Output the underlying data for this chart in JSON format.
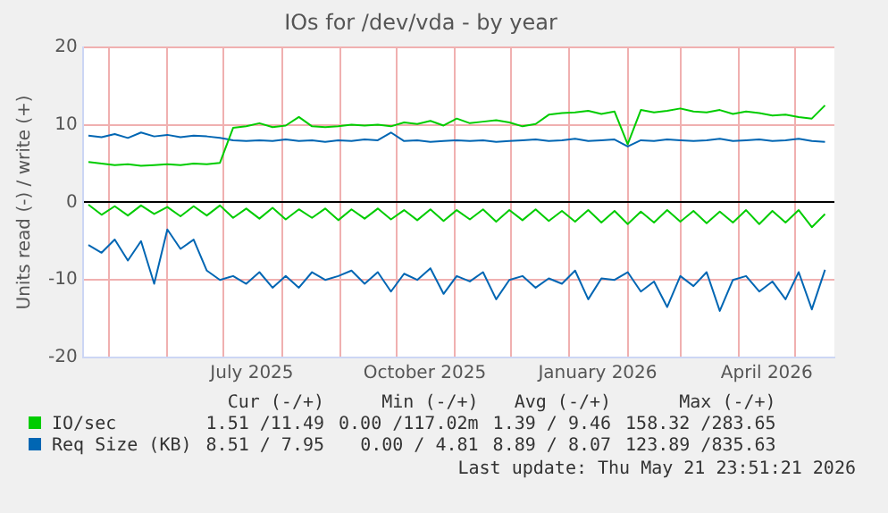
{
  "chart_data": {
    "type": "line",
    "title": "IOs for /dev/vda - by year",
    "ylabel": "Units read (-) / write (+)",
    "x": [
      "2025-04-20",
      "2025-04-27",
      "2025-05-04",
      "2025-05-11",
      "2025-05-18",
      "2025-05-25",
      "2025-06-01",
      "2025-06-08",
      "2025-06-15",
      "2025-06-22",
      "2025-06-29",
      "2025-07-06",
      "2025-07-13",
      "2025-07-20",
      "2025-07-27",
      "2025-08-03",
      "2025-08-10",
      "2025-08-17",
      "2025-08-24",
      "2025-08-31",
      "2025-09-07",
      "2025-09-14",
      "2025-09-21",
      "2025-09-28",
      "2025-10-05",
      "2025-10-12",
      "2025-10-19",
      "2025-10-26",
      "2025-11-02",
      "2025-11-09",
      "2025-11-16",
      "2025-11-23",
      "2025-11-30",
      "2025-12-07",
      "2025-12-14",
      "2025-12-21",
      "2025-12-28",
      "2026-01-04",
      "2026-01-11",
      "2026-01-18",
      "2026-01-25",
      "2026-02-01",
      "2026-02-08",
      "2026-02-15",
      "2026-02-22",
      "2026-03-01",
      "2026-03-08",
      "2026-03-15",
      "2026-03-22",
      "2026-03-29",
      "2026-04-05",
      "2026-04-12",
      "2026-04-19",
      "2026-04-26",
      "2026-05-03",
      "2026-05-10",
      "2026-05-17"
    ],
    "series": [
      {
        "name": "IO/sec",
        "color": "#00cc00",
        "values": [
          5.2,
          5.0,
          4.8,
          4.9,
          4.7,
          4.8,
          4.9,
          4.8,
          5.0,
          4.9,
          5.1,
          9.6,
          9.8,
          10.2,
          9.7,
          9.9,
          11.0,
          9.8,
          9.7,
          9.8,
          10.0,
          9.9,
          10.0,
          9.8,
          10.3,
          10.1,
          10.5,
          9.9,
          10.8,
          10.2,
          10.4,
          10.6,
          10.3,
          9.8,
          10.1,
          11.3,
          11.5,
          11.6,
          11.8,
          11.4,
          11.7,
          7.5,
          11.9,
          11.6,
          11.8,
          12.1,
          11.7,
          11.6,
          11.9,
          11.4,
          11.7,
          11.5,
          11.2,
          11.3,
          11.0,
          10.8,
          12.5
        ]
      },
      {
        "color": "#00cc00",
        "values": [
          -0.3,
          -1.6,
          -0.5,
          -1.7,
          -0.4,
          -1.5,
          -0.6,
          -1.8,
          -0.5,
          -1.7,
          -0.4,
          -2.0,
          -0.8,
          -2.1,
          -0.7,
          -2.2,
          -0.9,
          -2.0,
          -0.8,
          -2.3,
          -0.9,
          -2.1,
          -0.8,
          -2.2,
          -1.0,
          -2.3,
          -0.9,
          -2.4,
          -1.0,
          -2.2,
          -0.9,
          -2.5,
          -1.0,
          -2.3,
          -0.9,
          -2.4,
          -1.1,
          -2.5,
          -1.0,
          -2.6,
          -1.1,
          -2.8,
          -1.2,
          -2.6,
          -1.0,
          -2.5,
          -1.1,
          -2.7,
          -1.2,
          -2.6,
          -1.0,
          -2.8,
          -1.1,
          -2.6,
          -1.0,
          -3.2,
          -1.5
        ]
      },
      {
        "name": "Req Size (KB)",
        "color": "#0066b3",
        "values": [
          8.6,
          8.4,
          8.8,
          8.3,
          9.0,
          8.5,
          8.7,
          8.4,
          8.6,
          8.5,
          8.3,
          8.0,
          7.9,
          8.0,
          7.9,
          8.1,
          7.9,
          8.0,
          7.8,
          8.0,
          7.9,
          8.1,
          8.0,
          9.0,
          7.9,
          8.0,
          7.8,
          7.9,
          8.0,
          7.9,
          8.0,
          7.8,
          7.9,
          8.0,
          8.1,
          7.9,
          8.0,
          8.2,
          7.9,
          8.0,
          8.1,
          7.2,
          8.0,
          7.9,
          8.1,
          8.0,
          7.9,
          8.0,
          8.2,
          7.9,
          8.0,
          8.1,
          7.9,
          8.0,
          8.2,
          7.9,
          7.8
        ]
      },
      {
        "color": "#0066b3",
        "values": [
          -5.5,
          -6.5,
          -4.8,
          -7.5,
          -5.0,
          -10.5,
          -3.5,
          -6.0,
          -4.8,
          -8.8,
          -10.0,
          -9.5,
          -10.5,
          -9.0,
          -11.0,
          -9.5,
          -11.0,
          -9.0,
          -10.0,
          -9.5,
          -8.8,
          -10.5,
          -9.0,
          -11.5,
          -9.2,
          -10.0,
          -8.5,
          -11.8,
          -9.5,
          -10.2,
          -9.0,
          -12.5,
          -10.0,
          -9.5,
          -11.0,
          -9.8,
          -10.5,
          -8.8,
          -12.5,
          -9.8,
          -10.0,
          -9.0,
          -11.5,
          -10.2,
          -13.5,
          -9.5,
          -10.8,
          -9.0,
          -14.0,
          -10.0,
          -9.5,
          -11.5,
          -10.2,
          -12.5,
          -9.0,
          -13.8,
          -8.7
        ]
      }
    ],
    "xlim": [
      "2025-04-17",
      "2026-05-22"
    ],
    "xticks": [
      {
        "value": "2025-05-01",
        "label": null
      },
      {
        "value": "2025-06-01",
        "label": null
      },
      {
        "value": "2025-07-01",
        "label": null
      },
      {
        "value": "2025-07-16",
        "label": "July 2025"
      },
      {
        "value": "2025-08-01",
        "label": null
      },
      {
        "value": "2025-09-01",
        "label": null
      },
      {
        "value": "2025-10-01",
        "label": null
      },
      {
        "value": "2025-10-16",
        "label": "October 2025"
      },
      {
        "value": "2025-11-01",
        "label": null
      },
      {
        "value": "2025-12-01",
        "label": null
      },
      {
        "value": "2026-01-01",
        "label": null
      },
      {
        "value": "2026-01-16",
        "label": "January 2026"
      },
      {
        "value": "2026-02-01",
        "label": null
      },
      {
        "value": "2026-03-01",
        "label": null
      },
      {
        "value": "2026-04-01",
        "label": null
      },
      {
        "value": "2026-04-16",
        "label": "April 2026"
      },
      {
        "value": "2026-05-01",
        "label": null
      }
    ],
    "ylim": [
      -20,
      20
    ],
    "yticks": [
      -20,
      -10,
      0,
      10,
      20
    ],
    "grid": true,
    "legend": "bottom",
    "annotations": [
      "Cur (-/+)",
      "Min (-/+)",
      "Avg (-/+)",
      "Max (-/+)",
      "1.51 /11.49",
      "0.00 /117.02m",
      "1.39 / 9.46",
      "158.32 /283.65",
      "8.51 / 7.95",
      "0.00 / 4.81",
      "8.89 / 8.07",
      "123.89 /835.63",
      "Last update: Thu May 21 23:51:21 2026"
    ]
  }
}
